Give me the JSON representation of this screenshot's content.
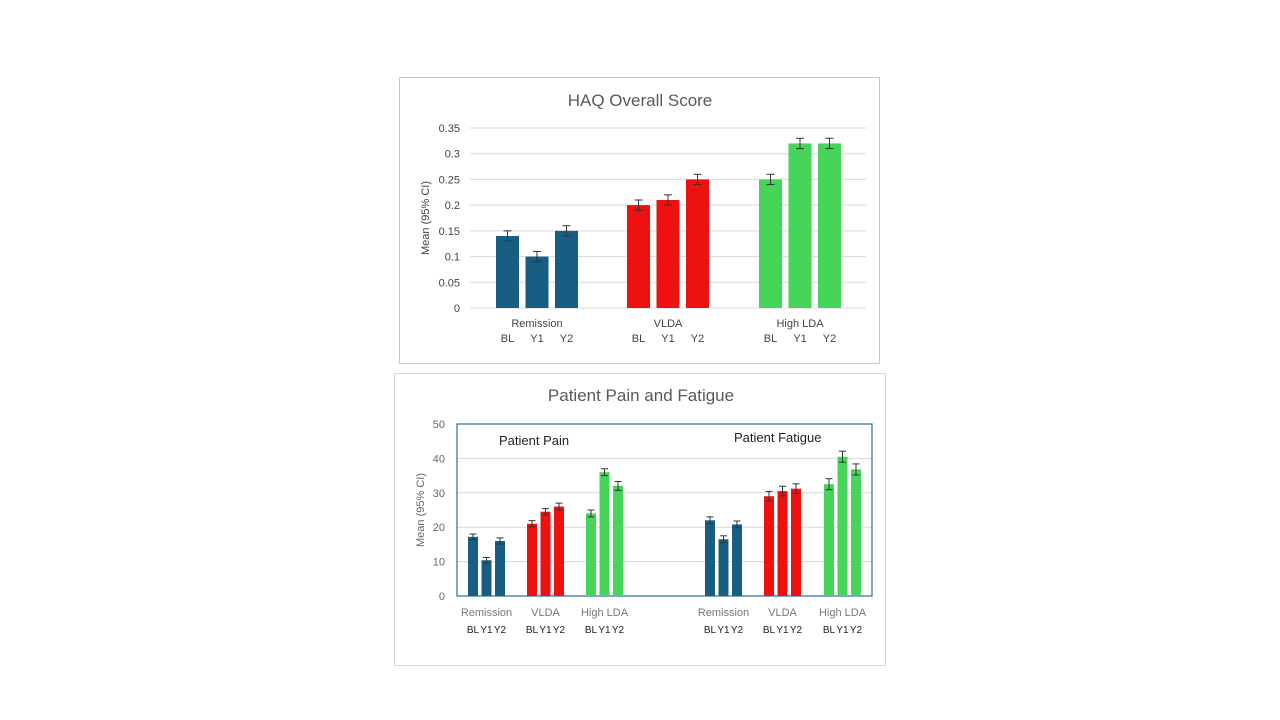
{
  "colors": {
    "remission": "#175e82",
    "vlda": "#ee1111",
    "high_lda": "#47d45a",
    "grid": "#d9d9d9",
    "axis_text": "#444444",
    "title_text": "#595959",
    "plot_border": "#2e6e95"
  },
  "chart_data": [
    {
      "type": "bar",
      "title": "HAQ Overall Score",
      "ylabel": "Mean (95% CI)",
      "ylim": [
        0,
        0.35
      ],
      "yticks": [
        0,
        0.05,
        0.1,
        0.15,
        0.2,
        0.25,
        0.3,
        0.35
      ],
      "ytick_labels": [
        "0",
        "0.05",
        "0.1",
        "0.15",
        "0.2",
        "0.25",
        "0.3",
        "0.35"
      ],
      "grid": true,
      "groups": [
        {
          "name": "Remission",
          "categories": [
            "BL",
            "Y1",
            "Y2"
          ],
          "values": [
            0.14,
            0.1,
            0.15
          ],
          "ci": [
            0.01,
            0.01,
            0.01
          ],
          "color_key": "remission"
        },
        {
          "name": "VLDA",
          "categories": [
            "BL",
            "Y1",
            "Y2"
          ],
          "values": [
            0.2,
            0.21,
            0.25
          ],
          "ci": [
            0.01,
            0.01,
            0.01
          ],
          "color_key": "vlda"
        },
        {
          "name": "High LDA",
          "categories": [
            "BL",
            "Y1",
            "Y2"
          ],
          "values": [
            0.25,
            0.32,
            0.32
          ],
          "ci": [
            0.01,
            0.01,
            0.01
          ],
          "color_key": "high_lda"
        }
      ]
    },
    {
      "type": "bar",
      "title": "Patient Pain and Fatigue",
      "ylabel": "Mean (95% CI)",
      "ylim": [
        0,
        50
      ],
      "yticks": [
        0,
        10,
        20,
        30,
        40,
        50
      ],
      "ytick_labels": [
        "0",
        "10",
        "20",
        "30",
        "40",
        "50"
      ],
      "grid": true,
      "panels": [
        {
          "label": "Patient Pain",
          "groups": [
            {
              "name": "Remission",
              "categories": [
                "BL",
                "Y1",
                "Y2"
              ],
              "values": [
                17.2,
                10.4,
                16.0
              ],
              "ci": [
                0.8,
                0.8,
                0.9
              ],
              "color_key": "remission"
            },
            {
              "name": "VLDA",
              "categories": [
                "BL",
                "Y1",
                "Y2"
              ],
              "values": [
                21.0,
                24.5,
                26.0
              ],
              "ci": [
                0.9,
                0.9,
                1.0
              ],
              "color_key": "vlda"
            },
            {
              "name": "High LDA",
              "categories": [
                "BL",
                "Y1",
                "Y2"
              ],
              "values": [
                24.0,
                36.0,
                32.0
              ],
              "ci": [
                1.0,
                1.0,
                1.3
              ],
              "color_key": "high_lda"
            }
          ]
        },
        {
          "label": "Patient Fatigue",
          "groups": [
            {
              "name": "Remission",
              "categories": [
                "BL",
                "Y1",
                "Y2"
              ],
              "values": [
                22.0,
                16.5,
                20.8
              ],
              "ci": [
                1.0,
                1.0,
                1.0
              ],
              "color_key": "remission"
            },
            {
              "name": "VLDA",
              "categories": [
                "BL",
                "Y1",
                "Y2"
              ],
              "values": [
                29.0,
                30.5,
                31.2
              ],
              "ci": [
                1.4,
                1.4,
                1.4
              ],
              "color_key": "vlda"
            },
            {
              "name": "High LDA",
              "categories": [
                "BL",
                "Y1",
                "Y2"
              ],
              "values": [
                32.5,
                40.5,
                36.8
              ],
              "ci": [
                1.6,
                1.6,
                1.6
              ],
              "color_key": "high_lda"
            }
          ]
        }
      ]
    }
  ]
}
